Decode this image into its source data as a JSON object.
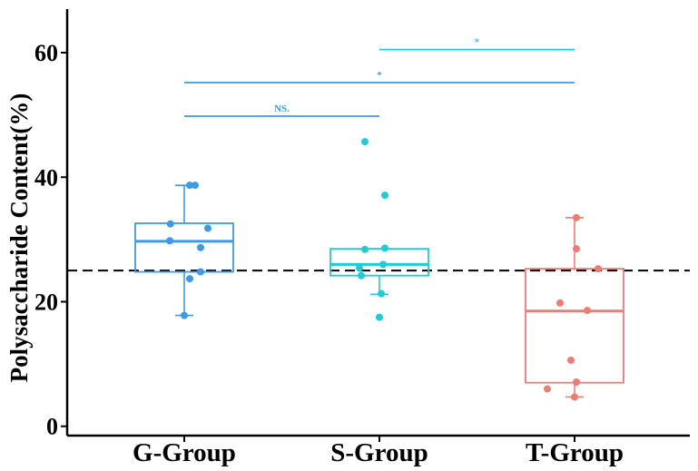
{
  "chart_data": {
    "type": "boxplot",
    "title": "",
    "xlabel": "",
    "ylabel": "Polysaccharide Content(%)",
    "ylim": [
      -1.5,
      67
    ],
    "yticks": [
      0,
      20,
      40,
      60
    ],
    "ytick_labels": [
      "0",
      "20",
      "40",
      "60"
    ],
    "reference_line": 25,
    "categories": [
      "G-Group",
      "S-Group",
      "T-Group"
    ],
    "colors": [
      "#3d9ae8",
      "#1fcbd6",
      "#f07b72"
    ],
    "groups": [
      {
        "name": "G-Group",
        "whisker_low": 17.8,
        "q1": 24.8,
        "median": 29.7,
        "q3": 32.6,
        "whisker_high": 38.7,
        "points": [
          {
            "jitter": 0.15,
            "y": 38.7
          },
          {
            "jitter": 0.3,
            "y": 38.7
          },
          {
            "jitter": -0.38,
            "y": 32.5
          },
          {
            "jitter": 0.65,
            "y": 31.8
          },
          {
            "jitter": -0.4,
            "y": 29.8
          },
          {
            "jitter": 0.45,
            "y": 28.7
          },
          {
            "jitter": 0.45,
            "y": 24.8
          },
          {
            "jitter": 0.15,
            "y": 23.7
          },
          {
            "jitter": 0.0,
            "y": 17.8
          }
        ]
      },
      {
        "name": "S-Group",
        "whisker_low": 21.2,
        "q1": 24.2,
        "median": 26.0,
        "q3": 28.5,
        "whisker_high": 28.5,
        "points": [
          {
            "jitter": -0.4,
            "y": 45.7
          },
          {
            "jitter": 0.15,
            "y": 37.1
          },
          {
            "jitter": -0.4,
            "y": 28.4
          },
          {
            "jitter": 0.15,
            "y": 28.6
          },
          {
            "jitter": 0.1,
            "y": 26.0
          },
          {
            "jitter": -0.55,
            "y": 25.4
          },
          {
            "jitter": -0.5,
            "y": 24.2
          },
          {
            "jitter": 0.05,
            "y": 21.3
          },
          {
            "jitter": 0.0,
            "y": 17.5
          }
        ]
      },
      {
        "name": "T-Group",
        "whisker_low": 4.7,
        "q1": 7.0,
        "median": 18.5,
        "q3": 25.3,
        "whisker_high": 33.5,
        "points": [
          {
            "jitter": 0.05,
            "y": 33.5
          },
          {
            "jitter": 0.05,
            "y": 28.5
          },
          {
            "jitter": 0.65,
            "y": 25.3
          },
          {
            "jitter": -0.4,
            "y": 19.8
          },
          {
            "jitter": 0.35,
            "y": 18.6
          },
          {
            "jitter": -0.1,
            "y": 10.6
          },
          {
            "jitter": 0.05,
            "y": 7.1
          },
          {
            "jitter": -0.75,
            "y": 6.0
          },
          {
            "jitter": 0.0,
            "y": 4.7
          }
        ]
      }
    ],
    "comparisons": [
      {
        "from": 0,
        "to": 1,
        "y": 49.8,
        "label": "NS.",
        "color": "#3d9ae8"
      },
      {
        "from": 0,
        "to": 2,
        "y": 55.2,
        "label": "*",
        "color": "#3d9ae8"
      },
      {
        "from": 1,
        "to": 2,
        "y": 60.5,
        "label": "*",
        "color": "#1fcbd6"
      }
    ]
  }
}
